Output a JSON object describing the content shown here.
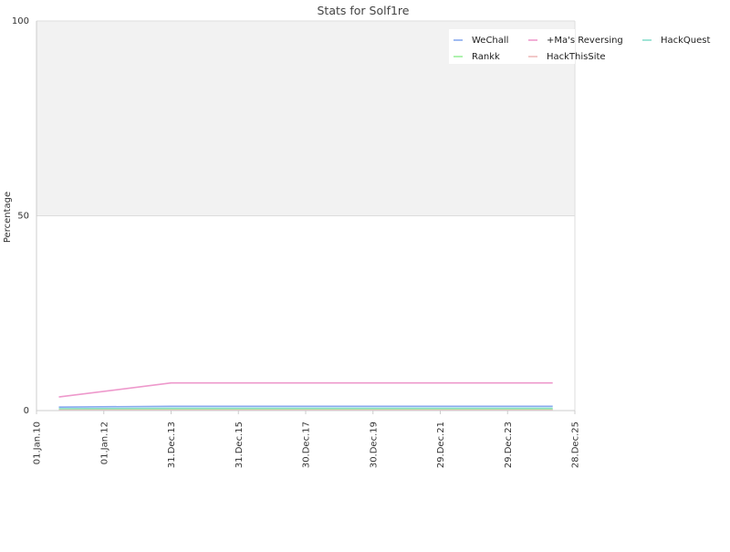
{
  "chart_data": {
    "type": "line",
    "title": "Stats for Solf1re",
    "xlabel": "",
    "ylabel": "Percentage",
    "ylim": [
      0,
      100
    ],
    "yticks": [
      0,
      50,
      100
    ],
    "xlim": [
      "2010-01-01",
      "2025-12-28"
    ],
    "xticks": [
      "01.Jan.10",
      "01.Jan.12",
      "31.Dec.13",
      "31.Dec.15",
      "30.Dec.17",
      "30.Dec.19",
      "29.Dec.21",
      "29.Dec.23",
      "28.Dec.25"
    ],
    "xtick_dates": [
      "2010-01-01",
      "2012-01-01",
      "2013-12-31",
      "2015-12-31",
      "2017-12-30",
      "2019-12-30",
      "2021-12-29",
      "2023-12-29",
      "2025-12-28"
    ],
    "x": [
      "2010-09-01",
      "2013-12-31",
      "2025-05-01"
    ],
    "series": [
      {
        "name": "WeChall",
        "color": "#88aaee",
        "values": [
          0.9,
          1.1,
          1.1
        ]
      },
      {
        "name": "+Ma's Reversing",
        "color": "#ee99cc",
        "values": [
          3.5,
          7.1,
          7.1
        ]
      },
      {
        "name": "HackQuest",
        "color": "#88ddcc",
        "values": [
          0.5,
          0.6,
          0.6
        ]
      },
      {
        "name": "Rankk",
        "color": "#99ee99",
        "values": [
          0.2,
          0.3,
          0.3
        ]
      },
      {
        "name": "HackThisSite",
        "color": "#eebbbb",
        "values": [
          0.1,
          0.1,
          0.1
        ]
      }
    ],
    "legend_position": "top-right",
    "bands": [
      {
        "from": 50,
        "to": 100,
        "color": "#f2f2f2"
      }
    ],
    "grid": true
  }
}
